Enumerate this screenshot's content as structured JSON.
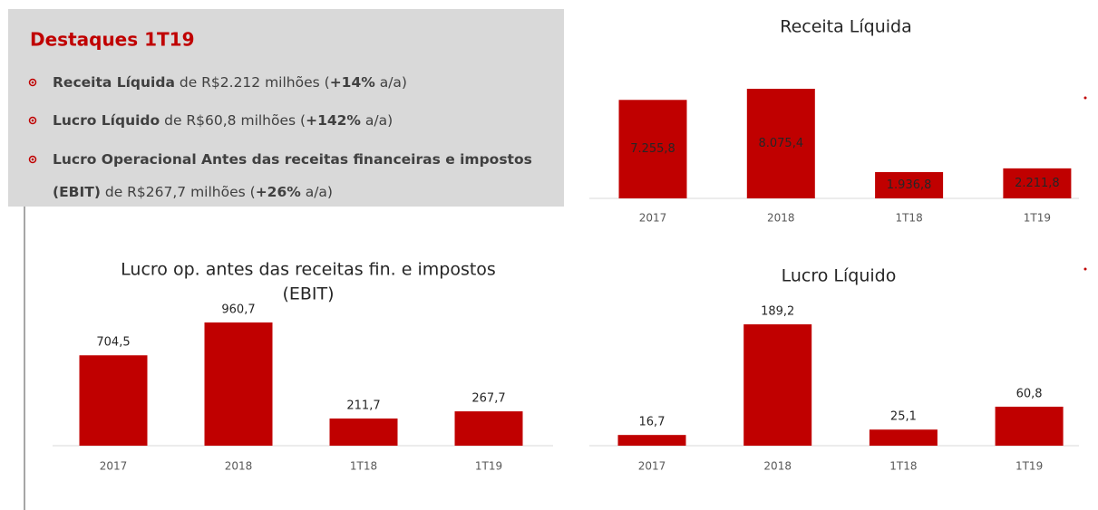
{
  "highlights": {
    "title": "Destaques 1T19",
    "bullets": [
      [
        [
          {
            "text": "Receita Líquida",
            "bold": true
          },
          {
            "text": " de R$2.212 milhões (",
            "bold": false
          },
          {
            "text": "+14%",
            "bold": true
          },
          {
            "text": " a/a)",
            "bold": false
          }
        ]
      ],
      [
        [
          {
            "text": "Lucro Líquido",
            "bold": true
          },
          {
            "text": " de R$60,8 milhões (",
            "bold": false
          },
          {
            "text": "+142%",
            "bold": true
          },
          {
            "text": " a/a)",
            "bold": false
          }
        ]
      ],
      [
        [
          {
            "text": "Lucro Operacional Antes das receitas financeiras e impostos",
            "bold": true
          }
        ],
        [
          {
            "text": "(EBIT)",
            "bold": true
          },
          {
            "text": " de R$267,7 milhões (",
            "bold": false
          },
          {
            "text": "+26%",
            "bold": true
          },
          {
            "text": " a/a)",
            "bold": false
          }
        ]
      ]
    ]
  },
  "chart_data": [
    {
      "type": "bar",
      "title": [
        "Receita Líquida"
      ],
      "categories": [
        "2017",
        "2018",
        "1T18",
        "1T19"
      ],
      "values": [
        7255.8,
        8075.4,
        1936.8,
        2211.8
      ],
      "value_labels": [
        "7.255,8",
        "8.075,4",
        "1.936,8",
        "2.211,8"
      ],
      "value_label_position": "inside",
      "color": "#c00000",
      "ylim": [
        0,
        9000
      ]
    },
    {
      "type": "bar",
      "title": [
        "Lucro op. antes das receitas fin. e impostos",
        "(EBIT)"
      ],
      "categories": [
        "2017",
        "2018",
        "1T18",
        "1T19"
      ],
      "values": [
        704.5,
        960.7,
        211.7,
        267.7
      ],
      "value_labels": [
        "704,5",
        "960,7",
        "211,7",
        "267,7"
      ],
      "value_label_position": "outside",
      "color": "#c00000",
      "ylim": [
        0,
        1000
      ]
    },
    {
      "type": "bar",
      "title": [
        "Lucro Líquido"
      ],
      "categories": [
        "2017",
        "2018",
        "1T18",
        "1T19"
      ],
      "values": [
        16.7,
        189.2,
        25.1,
        60.8
      ],
      "value_labels": [
        "16,7",
        "189,2",
        "25,1",
        "60,8"
      ],
      "value_label_position": "outside",
      "color": "#c00000",
      "ylim": [
        0,
        200
      ]
    }
  ]
}
